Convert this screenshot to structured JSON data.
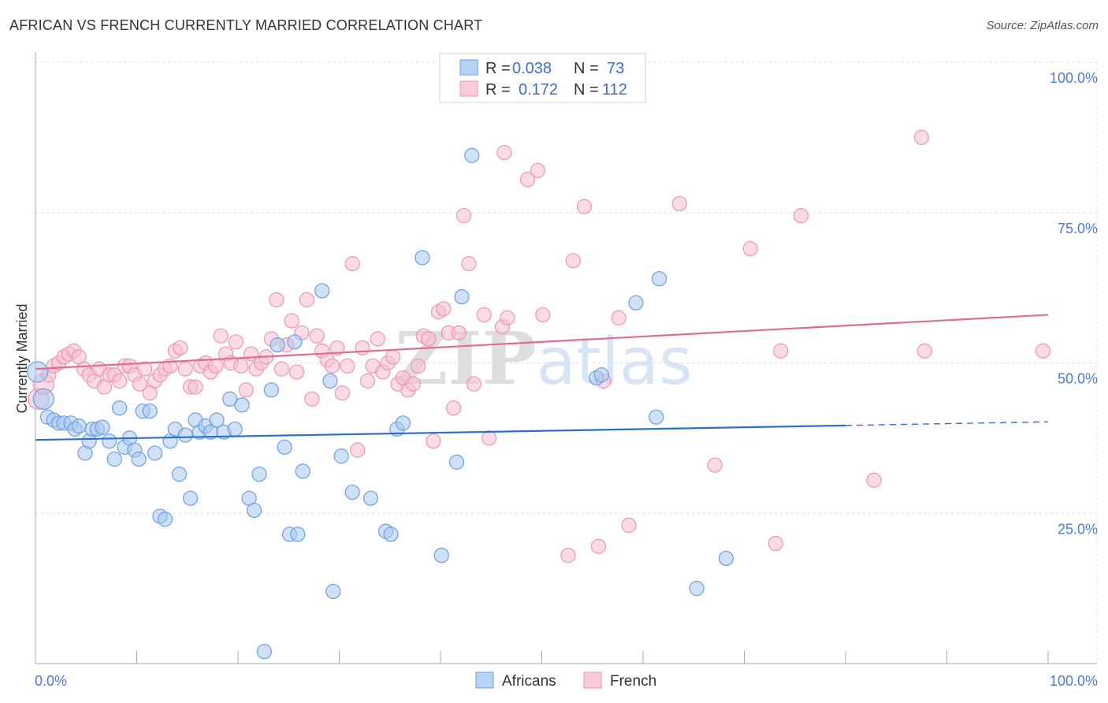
{
  "title": "AFRICAN VS FRENCH CURRENTLY MARRIED CORRELATION CHART",
  "source": "Source: ZipAtlas.com",
  "watermark": "ZIPatlas",
  "colors": {
    "africans_fill": "#a9c8f0",
    "africans_stroke": "#6a9ee0",
    "africans_line": "#2a6fcc",
    "french_fill": "#f7c0d2",
    "french_stroke": "#ee93b2",
    "french_line": "#e06b95",
    "tick_text": "#4a7bd0"
  },
  "legend_top": {
    "rows": [
      {
        "r_label": "R =",
        "r_value": "0.038",
        "n_label": "N =",
        "n_value": "73"
      },
      {
        "r_label": "R =",
        "r_value": "0.172",
        "n_label": "N =",
        "n_value": "112"
      }
    ]
  },
  "legend_bottom": [
    "Africans",
    "French"
  ],
  "chart_data": {
    "type": "scatter",
    "title": "AFRICAN VS FRENCH CURRENTLY MARRIED CORRELATION CHART",
    "xlabel": "",
    "ylabel": "Currently Married",
    "xlim": [
      0,
      100
    ],
    "ylim": [
      0,
      100
    ],
    "x_tick_labels": [
      "0.0%",
      "100.0%"
    ],
    "y_tick_labels": [
      "100.0%",
      "75.0%",
      "50.0%",
      "25.0%"
    ],
    "y_ticks": [
      100,
      75,
      50,
      25
    ],
    "grid": true,
    "legend_position": "top-center",
    "series": [
      {
        "name": "Africans",
        "r": 0.038,
        "n": 73,
        "trend": {
          "x0": 0,
          "y0": 37.2,
          "x1": 80,
          "y1": 39.6,
          "dashed_to": 100,
          "dashed_y": 40.2
        },
        "points": [
          [
            0.2,
            48.5
          ],
          [
            0.8,
            44
          ],
          [
            1.2,
            41
          ],
          [
            1.8,
            40.5
          ],
          [
            2.3,
            40
          ],
          [
            2.8,
            40
          ],
          [
            3.5,
            40
          ],
          [
            3.9,
            39
          ],
          [
            4.3,
            39.5
          ],
          [
            4.9,
            35
          ],
          [
            5.3,
            37
          ],
          [
            5.6,
            39
          ],
          [
            6.1,
            39
          ],
          [
            6.6,
            39.3
          ],
          [
            7.3,
            37
          ],
          [
            7.8,
            34
          ],
          [
            8.3,
            42.5
          ],
          [
            8.8,
            36
          ],
          [
            9.3,
            37.5
          ],
          [
            9.8,
            35.5
          ],
          [
            10.2,
            34
          ],
          [
            10.6,
            42
          ],
          [
            11.3,
            42
          ],
          [
            11.8,
            35
          ],
          [
            12.3,
            24.5
          ],
          [
            12.8,
            24
          ],
          [
            13.3,
            37
          ],
          [
            13.8,
            39
          ],
          [
            14.2,
            31.5
          ],
          [
            14.8,
            38
          ],
          [
            15.3,
            27.5
          ],
          [
            15.8,
            40.5
          ],
          [
            16.2,
            38.5
          ],
          [
            16.8,
            39.5
          ],
          [
            17.3,
            38.5
          ],
          [
            17.9,
            40.5
          ],
          [
            18.6,
            38.5
          ],
          [
            19.2,
            44
          ],
          [
            19.7,
            39
          ],
          [
            20.4,
            43
          ],
          [
            21.1,
            27.5
          ],
          [
            21.6,
            25.5
          ],
          [
            22.1,
            31.5
          ],
          [
            22.6,
            2
          ],
          [
            23.3,
            45.5
          ],
          [
            23.9,
            53
          ],
          [
            24.6,
            36
          ],
          [
            25.1,
            21.5
          ],
          [
            25.6,
            53.5
          ],
          [
            25.9,
            21.5
          ],
          [
            26.4,
            32
          ],
          [
            28.3,
            62
          ],
          [
            29.1,
            47
          ],
          [
            29.4,
            12
          ],
          [
            30.2,
            34.5
          ],
          [
            31.3,
            28.5
          ],
          [
            33.1,
            27.5
          ],
          [
            34.6,
            22
          ],
          [
            35.1,
            21.5
          ],
          [
            35.7,
            39
          ],
          [
            36.3,
            40
          ],
          [
            38.2,
            67.5
          ],
          [
            40.1,
            18
          ],
          [
            41.6,
            33.5
          ],
          [
            42.1,
            61
          ],
          [
            43.1,
            84.5
          ],
          [
            55.4,
            47.5
          ],
          [
            55.9,
            48
          ],
          [
            59.3,
            60
          ],
          [
            61.3,
            41
          ],
          [
            61.6,
            64
          ],
          [
            65.3,
            12.5
          ],
          [
            68.2,
            17.5
          ]
        ]
      },
      {
        "name": "French",
        "r": 0.172,
        "n": 112,
        "trend": {
          "x0": 0,
          "y0": 49,
          "x1": 100,
          "y1": 58
        },
        "points": [
          [
            0.3,
            44
          ],
          [
            0.8,
            46.5
          ],
          [
            1.3,
            48
          ],
          [
            1.8,
            49.5
          ],
          [
            2.3,
            50
          ],
          [
            2.8,
            51
          ],
          [
            3.3,
            51.5
          ],
          [
            3.8,
            52
          ],
          [
            4.3,
            51
          ],
          [
            4.8,
            49
          ],
          [
            5.3,
            48
          ],
          [
            5.8,
            47
          ],
          [
            6.3,
            49
          ],
          [
            6.8,
            46
          ],
          [
            7.3,
            48
          ],
          [
            7.8,
            48
          ],
          [
            8.3,
            47
          ],
          [
            8.8,
            49.5
          ],
          [
            9.3,
            49.5
          ],
          [
            9.8,
            48
          ],
          [
            10.3,
            46.5
          ],
          [
            10.8,
            49
          ],
          [
            11.3,
            45
          ],
          [
            11.8,
            47
          ],
          [
            12.3,
            48
          ],
          [
            12.8,
            49
          ],
          [
            13.3,
            49.5
          ],
          [
            13.8,
            52
          ],
          [
            14.3,
            52.5
          ],
          [
            14.8,
            49
          ],
          [
            15.3,
            46
          ],
          [
            15.8,
            46
          ],
          [
            16.3,
            49.5
          ],
          [
            16.8,
            50
          ],
          [
            17.3,
            48.5
          ],
          [
            17.8,
            49.5
          ],
          [
            18.3,
            54.5
          ],
          [
            18.8,
            51.5
          ],
          [
            19.3,
            50
          ],
          [
            19.8,
            53.5
          ],
          [
            20.3,
            49.5
          ],
          [
            20.8,
            45.5
          ],
          [
            21.3,
            51.5
          ],
          [
            21.8,
            49
          ],
          [
            22.3,
            50
          ],
          [
            22.8,
            51
          ],
          [
            23.3,
            54
          ],
          [
            23.8,
            60.5
          ],
          [
            24.3,
            49
          ],
          [
            24.8,
            53
          ],
          [
            25.3,
            57
          ],
          [
            25.8,
            48.5
          ],
          [
            26.3,
            55
          ],
          [
            26.8,
            60.5
          ],
          [
            27.3,
            44
          ],
          [
            27.8,
            54.5
          ],
          [
            28.3,
            52
          ],
          [
            28.8,
            50.5
          ],
          [
            29.3,
            49.5
          ],
          [
            29.8,
            52.5
          ],
          [
            30.3,
            45
          ],
          [
            30.8,
            49.5
          ],
          [
            31.3,
            66.5
          ],
          [
            31.8,
            35.5
          ],
          [
            32.3,
            52.5
          ],
          [
            32.8,
            47
          ],
          [
            33.3,
            49.5
          ],
          [
            33.8,
            54
          ],
          [
            34.3,
            48.5
          ],
          [
            34.8,
            50
          ],
          [
            35.3,
            51
          ],
          [
            35.8,
            46.5
          ],
          [
            36.3,
            47.5
          ],
          [
            36.8,
            45.5
          ],
          [
            37.3,
            46.5
          ],
          [
            37.8,
            49.5
          ],
          [
            38.3,
            54.5
          ],
          [
            38.8,
            54
          ],
          [
            39.3,
            37
          ],
          [
            39.8,
            58.5
          ],
          [
            40.3,
            59
          ],
          [
            40.8,
            55
          ],
          [
            41.3,
            42.5
          ],
          [
            41.8,
            55
          ],
          [
            42.3,
            74.5
          ],
          [
            42.8,
            66.5
          ],
          [
            43.3,
            46.5
          ],
          [
            44.3,
            58
          ],
          [
            44.8,
            37.5
          ],
          [
            46.1,
            56
          ],
          [
            46.6,
            57.5
          ],
          [
            46.3,
            85
          ],
          [
            48.6,
            80.5
          ],
          [
            49.6,
            82
          ],
          [
            50.1,
            58
          ],
          [
            52.6,
            18
          ],
          [
            53.1,
            67
          ],
          [
            54.2,
            76
          ],
          [
            55.6,
            19.5
          ],
          [
            56.1,
            47
          ],
          [
            57.6,
            57.5
          ],
          [
            58.6,
            23
          ],
          [
            63.6,
            76.5
          ],
          [
            67.1,
            33
          ],
          [
            70.6,
            69
          ],
          [
            73.1,
            20
          ],
          [
            73.6,
            52
          ],
          [
            75.6,
            74.5
          ],
          [
            82.8,
            30.5
          ],
          [
            87.5,
            87.5
          ],
          [
            87.8,
            52
          ],
          [
            99.5,
            52
          ]
        ]
      }
    ]
  }
}
